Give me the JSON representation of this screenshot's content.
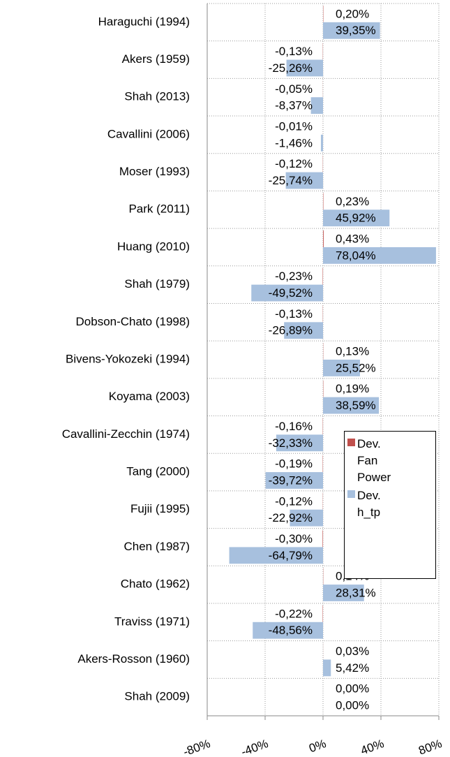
{
  "chart_data": {
    "type": "bar",
    "orientation": "horizontal",
    "categories": [
      "Haraguchi (1994)",
      "Akers (1959)",
      "Shah (2013)",
      "Cavallini (2006)",
      "Moser (1993)",
      "Park (2011)",
      "Huang (2010)",
      "Shah (1979)",
      "Dobson-Chato (1998)",
      "Bivens-Yokozeki (1994)",
      "Koyama (2003)",
      "Cavallini-Zecchin (1974)",
      "Tang (2000)",
      "Fujii (1995)",
      "Chen (1987)",
      "Chato (1962)",
      "Traviss (1971)",
      "Akers-Rosson (1960)",
      "Shah (2009)"
    ],
    "series": [
      {
        "name": "Dev. Fan Power",
        "color": "#c0504d",
        "values": [
          0.2,
          -0.13,
          -0.05,
          -0.01,
          -0.12,
          0.23,
          0.43,
          -0.23,
          -0.13,
          0.13,
          0.19,
          -0.16,
          -0.19,
          -0.12,
          -0.3,
          0.14,
          -0.22,
          0.03,
          0.0
        ],
        "value_labels": [
          "0,20%",
          "-0,13%",
          "-0,05%",
          "-0,01%",
          "-0,12%",
          "0,23%",
          "0,43%",
          "-0,23%",
          "-0,13%",
          "0,13%",
          "0,19%",
          "-0,16%",
          "-0,19%",
          "-0,12%",
          "-0,30%",
          "0,14%",
          "-0,22%",
          "0,03%",
          "0,00%"
        ]
      },
      {
        "name": "Dev. h_tp",
        "color": "#a7c0de",
        "values": [
          39.35,
          -25.26,
          -8.37,
          -1.46,
          -25.74,
          45.92,
          78.04,
          -49.52,
          -26.89,
          25.52,
          38.59,
          -32.33,
          -39.72,
          -22.92,
          -64.79,
          28.31,
          -48.56,
          5.42,
          0.0
        ],
        "value_labels": [
          "39,35%",
          "-25,26%",
          "-8,37%",
          "-1,46%",
          "-25,74%",
          "45,92%",
          "78,04%",
          "-49,52%",
          "-26,89%",
          "25,52%",
          "38,59%",
          "-32,33%",
          "-39,72%",
          "-22,92%",
          "-64,79%",
          "28,31%",
          "-48,56%",
          "5,42%",
          "0,00%"
        ]
      }
    ],
    "xlim": [
      -80,
      80
    ],
    "xticks": [
      {
        "value": -80,
        "label": "-80%"
      },
      {
        "value": -40,
        "label": "-40%"
      },
      {
        "value": 0,
        "label": "0%"
      },
      {
        "value": 40,
        "label": "40%"
      },
      {
        "value": 80,
        "label": "80%"
      }
    ],
    "grid": true,
    "legend": "right"
  }
}
